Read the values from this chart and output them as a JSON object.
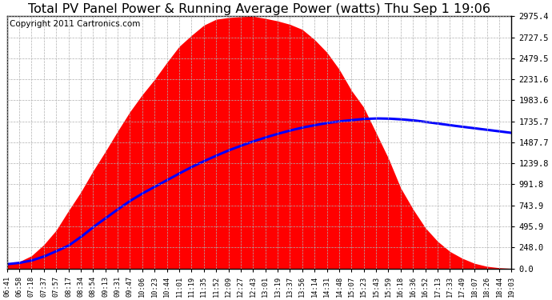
{
  "title": "Total PV Panel Power & Running Average Power (watts) Thu Sep 1 19:06",
  "copyright": "Copyright 2011 Cartronics.com",
  "yticks": [
    0.0,
    248.0,
    495.9,
    743.9,
    991.8,
    1239.8,
    1487.7,
    1735.7,
    1983.6,
    2231.6,
    2479.5,
    2727.5,
    2975.4
  ],
  "ymax": 2975.4,
  "bg_color": "#ffffff",
  "fill_color": "#ff0000",
  "avg_color": "#0000ff",
  "grid_color": "#b0b0b0",
  "title_fontsize": 11.5,
  "copyright_fontsize": 7.5,
  "xtick_labels": [
    "06:41",
    "06:58",
    "07:18",
    "07:37",
    "07:57",
    "08:17",
    "08:34",
    "08:54",
    "09:13",
    "09:31",
    "09:47",
    "10:06",
    "10:23",
    "10:44",
    "11:01",
    "11:19",
    "11:35",
    "11:52",
    "12:09",
    "12:27",
    "12:43",
    "13:01",
    "13:19",
    "13:37",
    "13:56",
    "14:14",
    "14:31",
    "14:48",
    "15:07",
    "15:23",
    "15:43",
    "15:59",
    "16:18",
    "16:36",
    "16:52",
    "17:13",
    "17:33",
    "17:49",
    "18:07",
    "18:26",
    "18:44",
    "19:03"
  ],
  "pv_values": [
    50,
    80,
    150,
    280,
    450,
    680,
    900,
    1150,
    1380,
    1620,
    1850,
    2050,
    2230,
    2430,
    2620,
    2750,
    2870,
    2940,
    2960,
    2970,
    2975,
    2950,
    2920,
    2880,
    2820,
    2700,
    2550,
    2350,
    2100,
    1900,
    1600,
    1300,
    950,
    700,
    480,
    320,
    200,
    120,
    60,
    25,
    8,
    0
  ],
  "avg_values": [
    50,
    65,
    93,
    140,
    202,
    268,
    370,
    486,
    590,
    696,
    796,
    884,
    962,
    1040,
    1120,
    1196,
    1265,
    1330,
    1392,
    1447,
    1498,
    1545,
    1588,
    1627,
    1662,
    1690,
    1716,
    1735,
    1750,
    1764,
    1770,
    1768,
    1760,
    1748,
    1730,
    1710,
    1690,
    1672,
    1654,
    1635,
    1618,
    1600
  ]
}
